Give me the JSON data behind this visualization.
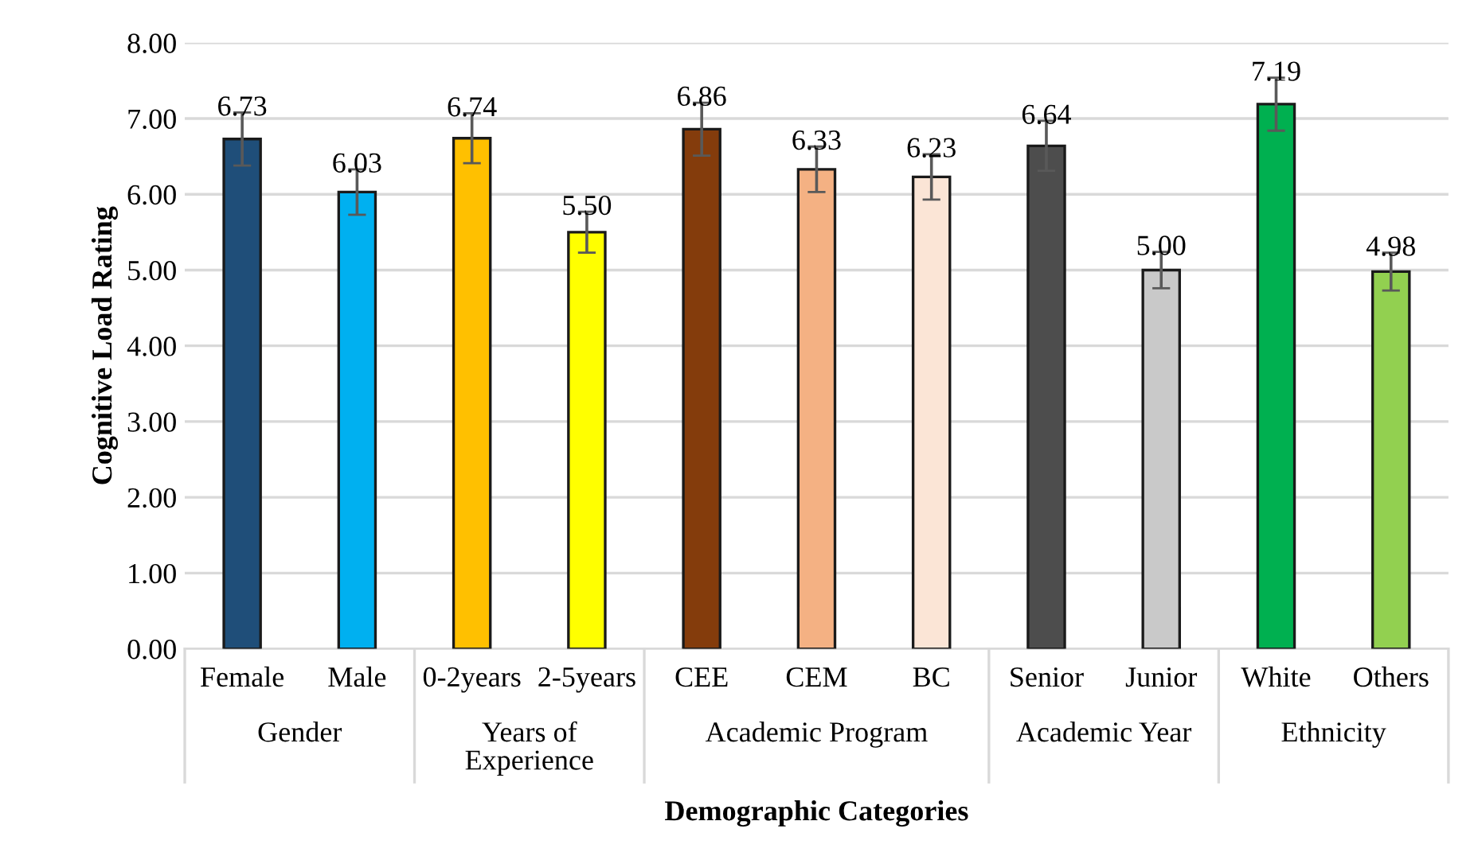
{
  "chart_data": {
    "type": "bar",
    "xlabel": "Demographic Categories",
    "ylabel": "Cognitive Load Rating",
    "categories": [
      "Female",
      "Male",
      "0-2years",
      "2-5years",
      "CEE",
      "CEM",
      "BC",
      "Senior",
      "Junior",
      "White",
      "Others"
    ],
    "values": [
      6.73,
      6.03,
      6.74,
      5.5,
      6.86,
      6.33,
      6.23,
      6.64,
      5.0,
      7.19,
      4.98
    ],
    "errors": [
      0.35,
      0.3,
      0.33,
      0.27,
      0.35,
      0.3,
      0.3,
      0.33,
      0.24,
      0.35,
      0.25
    ],
    "colors": [
      "#1f4e79",
      "#00b0f0",
      "#ffc000",
      "#ffff00",
      "#843c0c",
      "#f4b183",
      "#fbe5d6",
      "#4d4d4d",
      "#c9c9c9",
      "#00b050",
      "#92d050"
    ],
    "value_labels": [
      "6.73",
      "6.03",
      "6.74",
      "5.50",
      "6.86",
      "6.33",
      "6.23",
      "6.64",
      "5.00",
      "7.19",
      "4.98"
    ],
    "ylim": [
      0,
      8
    ],
    "yticks": [
      {
        "value": 0,
        "label": "0.00"
      },
      {
        "value": 1,
        "label": "1.00"
      },
      {
        "value": 2,
        "label": "2.00"
      },
      {
        "value": 3,
        "label": "3.00"
      },
      {
        "value": 4,
        "label": "4.00"
      },
      {
        "value": 5,
        "label": "5.00"
      },
      {
        "value": 6,
        "label": "6.00"
      },
      {
        "value": 7,
        "label": "7.00"
      },
      {
        "value": 8,
        "label": "8.00"
      }
    ],
    "grid": "y",
    "annotations": [
      "Gender",
      "Years of\nExperience",
      "Academic Program",
      "Academic Year",
      "Ethnicity"
    ]
  }
}
